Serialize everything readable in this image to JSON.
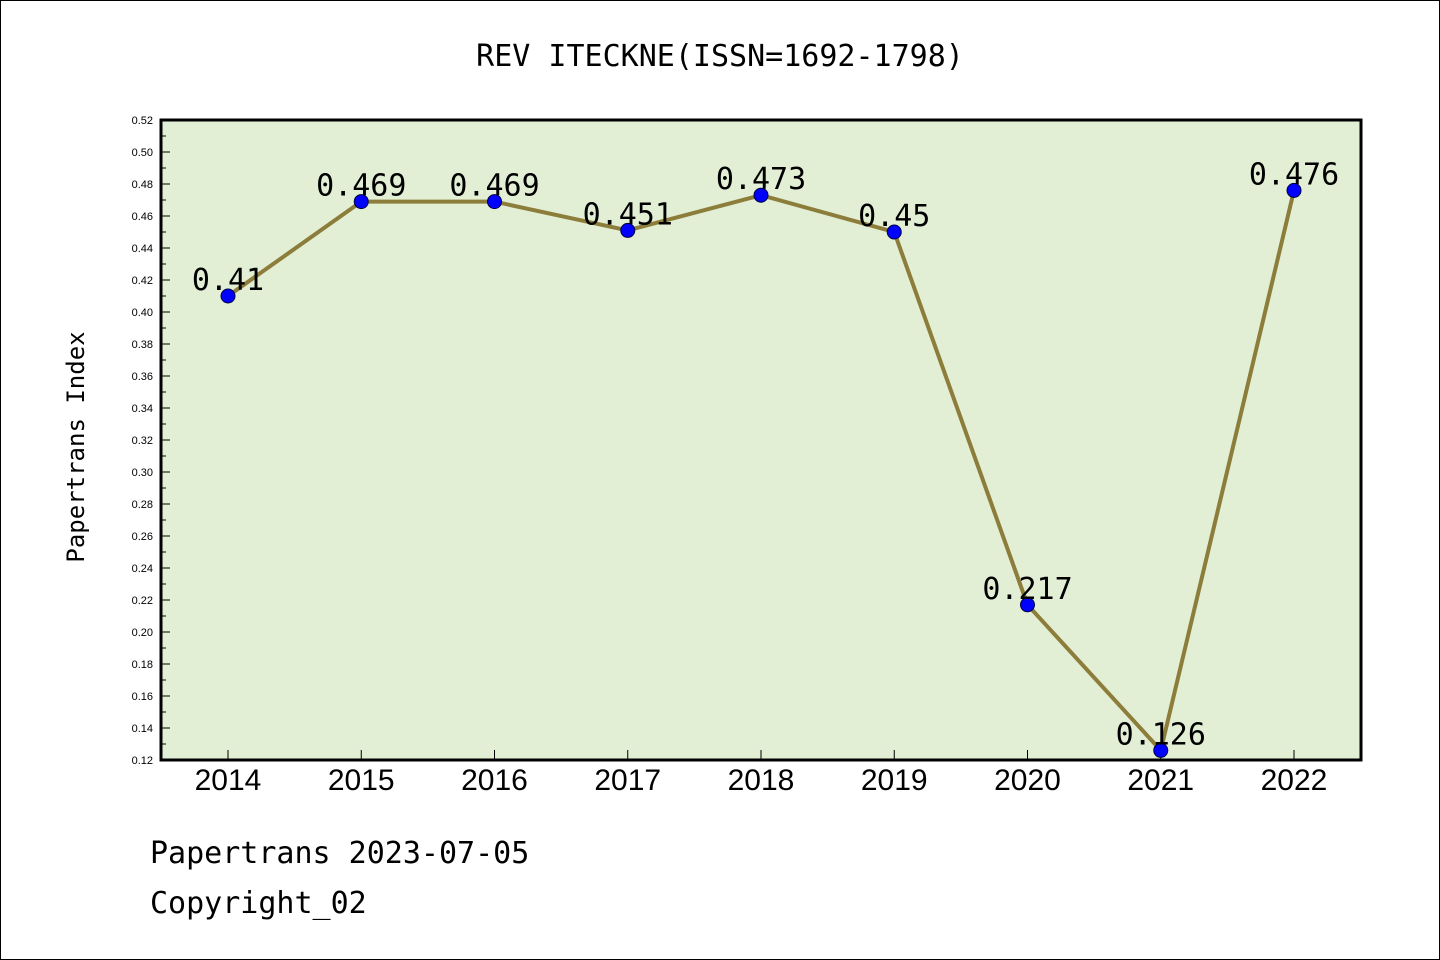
{
  "chart_data": {
    "type": "line",
    "title": "REV ITECKNE(ISSN=1692-1798)",
    "ylabel": "Papertrans Index",
    "xlabel": "",
    "categories": [
      "2014",
      "2015",
      "2016",
      "2017",
      "2018",
      "2019",
      "2020",
      "2021",
      "2022"
    ],
    "series": [
      {
        "values": [
          0.41,
          0.469,
          0.469,
          0.451,
          0.473,
          0.45,
          0.217,
          0.126,
          0.476
        ]
      }
    ],
    "data_labels": [
      "0.41",
      "0.469",
      "0.469",
      "0.451",
      "0.473",
      "0.45",
      "0.217",
      "0.126",
      "0.476"
    ],
    "ylim": [
      0.12,
      0.52
    ],
    "yticks": [
      "0.12",
      "0.14",
      "0.16",
      "0.18",
      "0.20",
      "0.22",
      "0.24",
      "0.26",
      "0.28",
      "0.30",
      "0.32",
      "0.34",
      "0.36",
      "0.38",
      "0.40",
      "0.42",
      "0.44",
      "0.46",
      "0.48",
      "0.50",
      "0.52"
    ],
    "grid": false,
    "plot_background": "#e2efd5",
    "line_color": "#8c7d3a",
    "marker_color": "#0000ff"
  },
  "footer": {
    "date_line": "Papertrans 2023-07-05",
    "copyright_line": "Copyright_02"
  }
}
